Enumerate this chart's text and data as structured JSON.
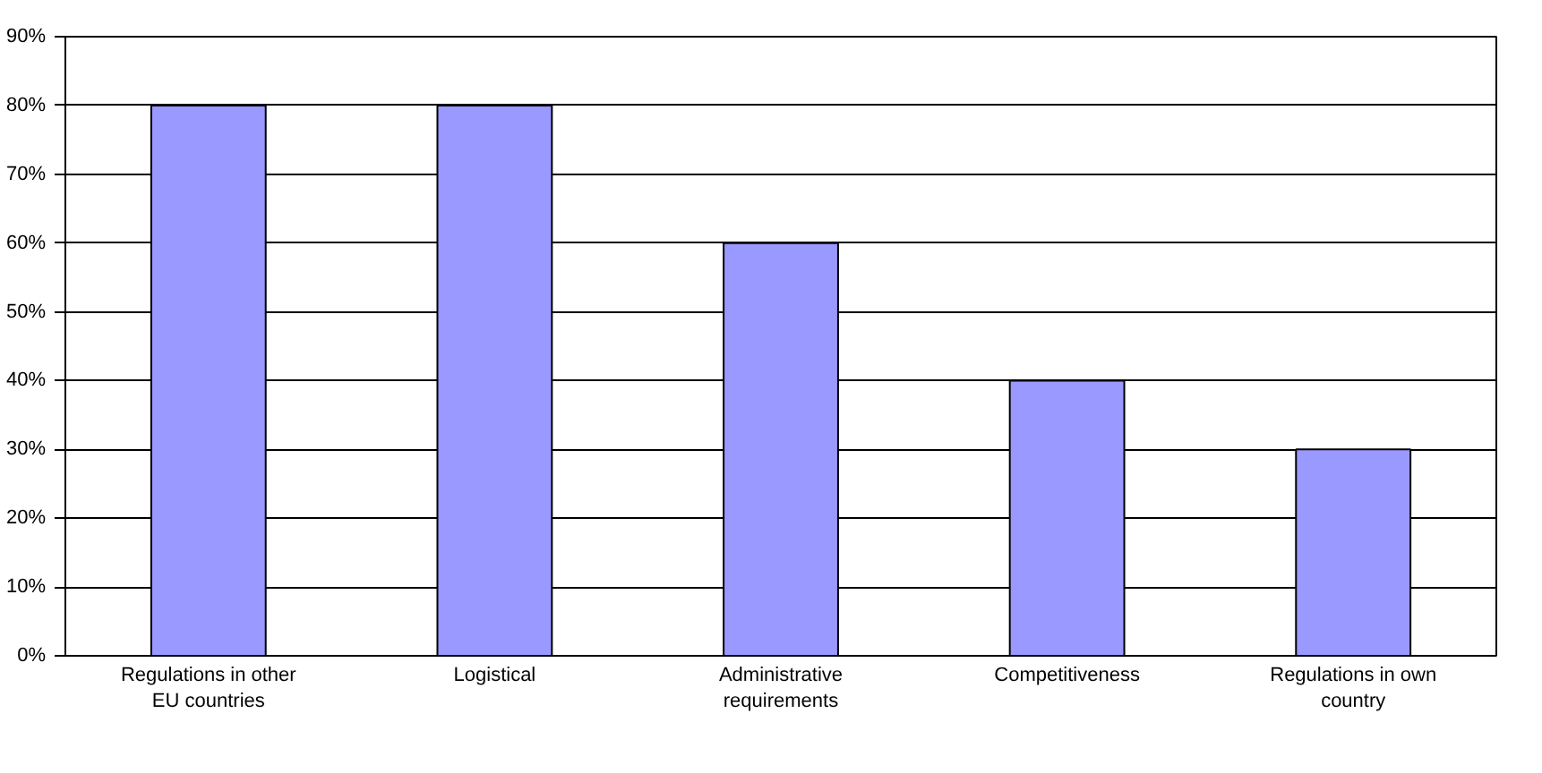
{
  "chart_data": {
    "type": "bar",
    "categories": [
      "Regulations in other\nEU countries",
      "Logistical",
      "Administrative\nrequirements",
      "Competitiveness",
      "Regulations in own\ncountry"
    ],
    "values": [
      80,
      80,
      60,
      40,
      30
    ],
    "color": "#9999ff",
    "ylim": [
      0,
      90
    ],
    "yticks": [
      {
        "value": 0,
        "label": "0%"
      },
      {
        "value": 10,
        "label": "10%"
      },
      {
        "value": 20,
        "label": "20%"
      },
      {
        "value": 30,
        "label": "30%"
      },
      {
        "value": 40,
        "label": "40%"
      },
      {
        "value": 50,
        "label": "50%"
      },
      {
        "value": 60,
        "label": "60%"
      },
      {
        "value": 70,
        "label": "70%"
      },
      {
        "value": 80,
        "label": "80%"
      },
      {
        "value": 90,
        "label": "90%"
      }
    ],
    "grid": "y"
  }
}
